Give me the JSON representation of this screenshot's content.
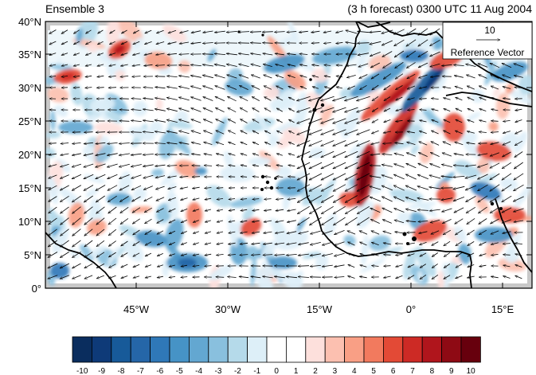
{
  "title_left": "Ensemble 3",
  "title_right": "(3 h forecast) 0300 UTC 11 Aug 2004",
  "map": {
    "lon_range": [
      -60,
      20
    ],
    "lat_range": [
      0,
      40
    ],
    "lat_ticks": [
      "0°",
      "5°N",
      "10°N",
      "15°N",
      "20°N",
      "25°N",
      "30°N",
      "35°N",
      "40°N"
    ],
    "lon_ticks": [
      "45°W",
      "30°W",
      "15°W",
      "0°",
      "15°E"
    ],
    "coastline_color": "#000000",
    "missing_color": "#c8c8c8"
  },
  "reference_vector": {
    "value": "10",
    "label": "Reference Vector"
  },
  "colorbar": {
    "labels": [
      "-10",
      "-9",
      "-8",
      "-7",
      "-6",
      "-5",
      "-4",
      "-3",
      "-2",
      "-1",
      "0",
      "1",
      "2",
      "3",
      "4",
      "5",
      "6",
      "7",
      "8",
      "9",
      "10"
    ],
    "colors": [
      "#0a2d5e",
      "#0e3a78",
      "#175a99",
      "#2566a8",
      "#2f78b8",
      "#4693c6",
      "#63a7d1",
      "#89c0de",
      "#b5daea",
      "#ddeff8",
      "#ffffff",
      "#ffffff",
      "#fde0dc",
      "#fcc0b0",
      "#f99f85",
      "#f27a5e",
      "#e34a36",
      "#cd2a25",
      "#b0151c",
      "#8e0a14",
      "#67000d"
    ]
  }
}
